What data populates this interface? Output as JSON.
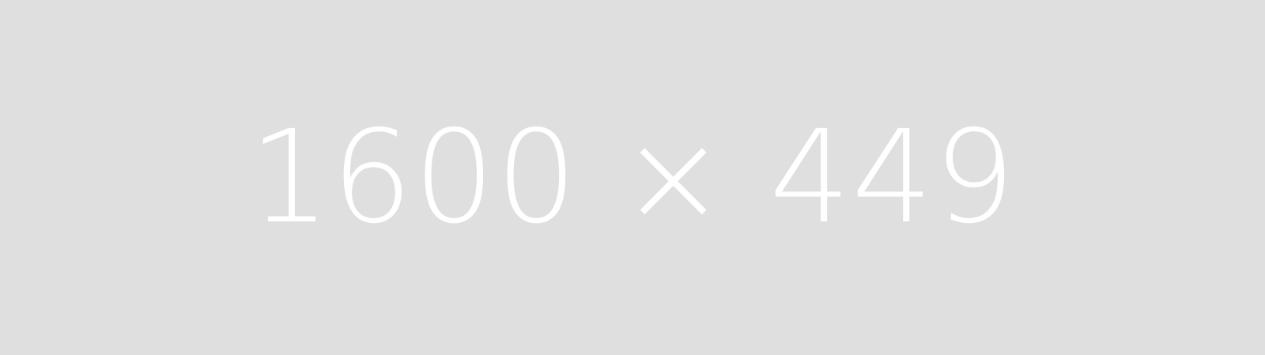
{
  "placeholder": {
    "label": "1600 × 449",
    "background_color": "#e0dfdf",
    "text_color": "#ffffff"
  }
}
